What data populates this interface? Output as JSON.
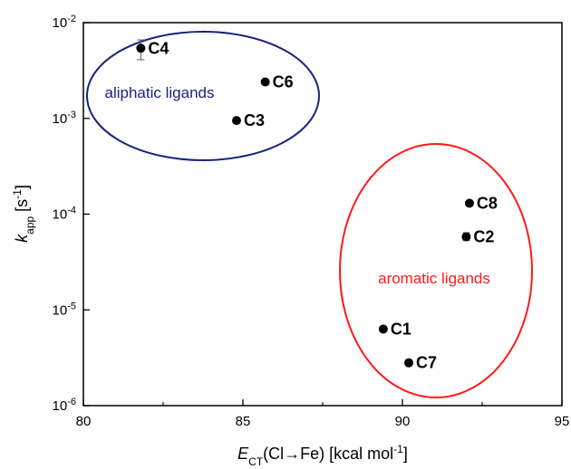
{
  "chart_data": {
    "type": "scatter",
    "x_axis": {
      "label_main": "E",
      "label_sub": "CT",
      "label_rest": "(Cl→Fe) [kcal mol",
      "label_sup": "-1",
      "label_end": "]",
      "min": 80,
      "max": 95,
      "ticks": [
        80,
        85,
        90,
        95
      ]
    },
    "y_axis": {
      "label_main": "k",
      "label_sub": "app",
      "label_rest": " [s",
      "label_sup": "-1",
      "label_end": "]",
      "scale": "log",
      "min": 1e-06,
      "max": 0.01,
      "tick_exponents": [
        -6,
        -5,
        -4,
        -3,
        -2
      ],
      "tick_base": "10"
    },
    "points": [
      {
        "label": "C4",
        "x": 81.8,
        "y": 0.0054,
        "err_low": 0.0041,
        "err_high": 0.0066
      },
      {
        "label": "C6",
        "x": 85.7,
        "y": 0.0024
      },
      {
        "label": "C3",
        "x": 84.8,
        "y": 0.00095
      },
      {
        "label": "C8",
        "x": 92.1,
        "y": 0.00013
      },
      {
        "label": "C2",
        "x": 92.0,
        "y": 5.8e-05,
        "err_low": 5.3e-05,
        "err_high": 6.4e-05
      },
      {
        "label": "C1",
        "x": 89.4,
        "y": 6.3e-06
      },
      {
        "label": "C7",
        "x": 90.2,
        "y": 2.8e-06
      }
    ],
    "groups": [
      {
        "label": "aliphatic ligands",
        "color": "#1a237e"
      },
      {
        "label": "aromatic ligands",
        "color": "#ff1a1a"
      }
    ],
    "grid": false,
    "legend": "none"
  }
}
